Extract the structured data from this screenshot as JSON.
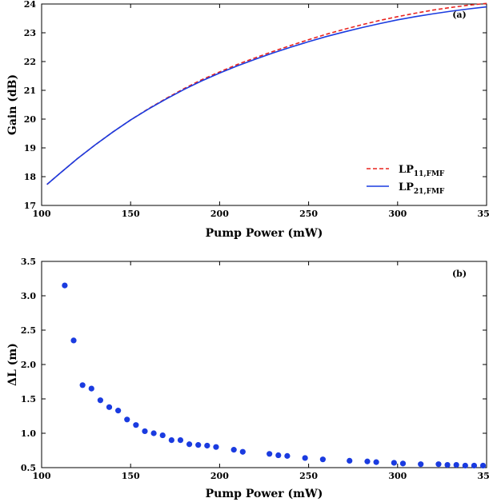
{
  "chart_data": [
    {
      "type": "line",
      "panel_label": "(a)",
      "xlabel": "Pump Power (mW)",
      "ylabel": "Gain (dB)",
      "xlim": [
        100,
        350
      ],
      "ylim": [
        17,
        24
      ],
      "xticks": [
        100,
        150,
        200,
        250,
        300,
        350
      ],
      "yticks": [
        17,
        18,
        19,
        20,
        21,
        22,
        23,
        24
      ],
      "legend_position": "bottom-right",
      "series": [
        {
          "name_main": "LP",
          "name_sub": "11,FMF",
          "color": "#e8231f",
          "style": "dashed",
          "x": [
            103,
            110,
            120,
            130,
            140,
            150,
            160,
            170,
            180,
            190,
            200,
            210,
            220,
            230,
            240,
            250,
            260,
            270,
            280,
            290,
            300,
            310,
            320,
            330,
            340,
            350
          ],
          "y": [
            17.73,
            18.1,
            18.62,
            19.1,
            19.55,
            19.97,
            20.36,
            20.72,
            21.06,
            21.37,
            21.64,
            21.9,
            22.13,
            22.35,
            22.56,
            22.76,
            22.95,
            23.12,
            23.28,
            23.43,
            23.56,
            23.68,
            23.79,
            23.88,
            23.96,
            24.02
          ]
        },
        {
          "name_main": "LP",
          "name_sub": "21,FMF",
          "color": "#1a3be0",
          "style": "solid",
          "x": [
            103,
            110,
            120,
            130,
            140,
            150,
            160,
            170,
            180,
            190,
            200,
            210,
            220,
            230,
            240,
            250,
            260,
            270,
            280,
            290,
            300,
            310,
            320,
            330,
            340,
            350
          ],
          "y": [
            17.73,
            18.1,
            18.62,
            19.1,
            19.55,
            19.97,
            20.35,
            20.7,
            21.03,
            21.33,
            21.6,
            21.85,
            22.08,
            22.3,
            22.5,
            22.69,
            22.87,
            23.03,
            23.18,
            23.32,
            23.45,
            23.56,
            23.66,
            23.75,
            23.83,
            23.9
          ]
        }
      ]
    },
    {
      "type": "scatter",
      "panel_label": "(b)",
      "xlabel": "Pump Power (mW)",
      "ylabel": "ΔL (m)",
      "xlim": [
        100,
        350
      ],
      "ylim": [
        0.5,
        3.5
      ],
      "xticks": [
        100,
        150,
        200,
        250,
        300,
        350
      ],
      "yticks": [
        "0.5",
        "1.0",
        "1.5",
        "2.0",
        "2.5",
        "3.0",
        "3.5"
      ],
      "color": "#1a3be0",
      "x": [
        113,
        118,
        123,
        128,
        133,
        138,
        143,
        148,
        153,
        158,
        163,
        168,
        173,
        178,
        183,
        188,
        193,
        198,
        208,
        213,
        228,
        233,
        238,
        248,
        258,
        273,
        283,
        288,
        298,
        303,
        313,
        323,
        328,
        333,
        338,
        343,
        348
      ],
      "y": [
        3.15,
        2.35,
        1.7,
        1.65,
        1.48,
        1.38,
        1.33,
        1.2,
        1.12,
        1.03,
        1.0,
        0.97,
        0.9,
        0.9,
        0.84,
        0.83,
        0.82,
        0.8,
        0.76,
        0.73,
        0.7,
        0.68,
        0.67,
        0.64,
        0.62,
        0.6,
        0.59,
        0.58,
        0.57,
        0.56,
        0.55,
        0.55,
        0.54,
        0.54,
        0.53,
        0.53,
        0.53
      ]
    }
  ]
}
